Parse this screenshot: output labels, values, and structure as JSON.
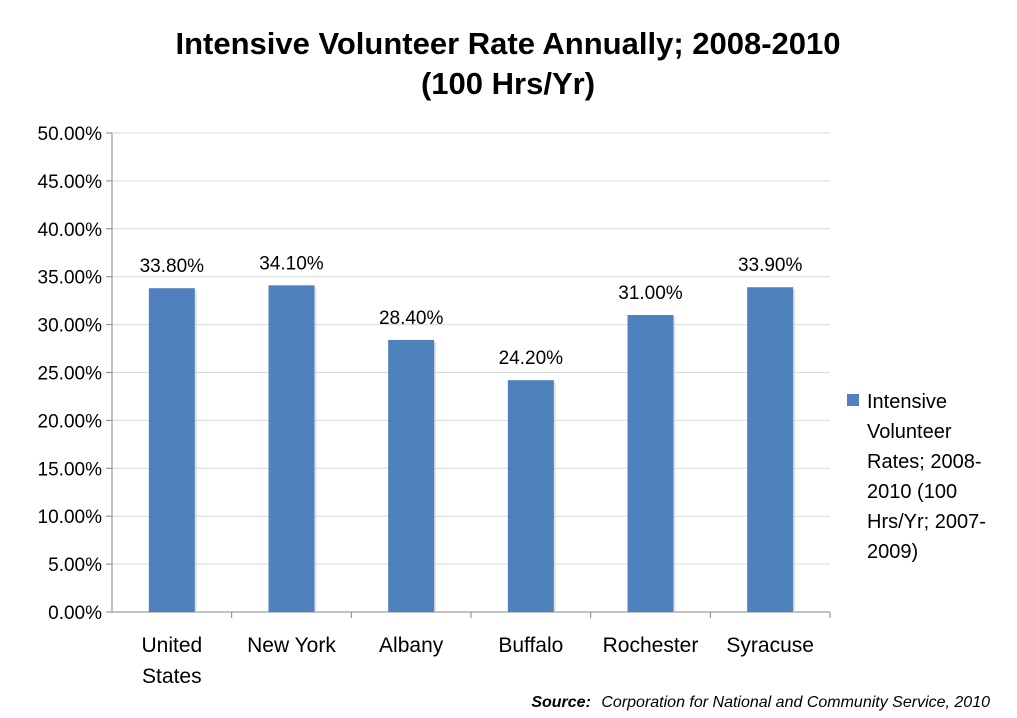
{
  "chart_data": {
    "type": "bar",
    "title_lines": [
      "Intensive Volunteer Rate Annually; 2008-2010",
      "(100 Hrs/Yr)"
    ],
    "categories": [
      [
        "United",
        "States"
      ],
      [
        "New York"
      ],
      [
        "Albany"
      ],
      [
        "Buffalo"
      ],
      [
        "Rochester"
      ],
      [
        "Syracuse"
      ]
    ],
    "series": [
      {
        "name_lines": [
          "Intensive",
          "Volunteer",
          "Rates; 2008-",
          "2010 (100",
          "Hrs/Yr; 2007-",
          "2009)"
        ],
        "values": [
          33.8,
          34.1,
          28.4,
          24.2,
          31.0,
          33.9
        ],
        "data_labels": [
          "33.80%",
          "34.10%",
          "28.40%",
          "24.20%",
          "31.00%",
          "33.90%"
        ],
        "color": "#4F81BD"
      }
    ],
    "ylim": [
      0,
      50
    ],
    "yticks": [
      "0.00%",
      "5.00%",
      "10.00%",
      "15.00%",
      "20.00%",
      "25.00%",
      "30.00%",
      "35.00%",
      "40.00%",
      "45.00%",
      "50.00%"
    ],
    "grid": true,
    "legend_position": "right"
  },
  "source": {
    "label": "Source:",
    "text": "Corporation for National and Community Service, 2010"
  }
}
